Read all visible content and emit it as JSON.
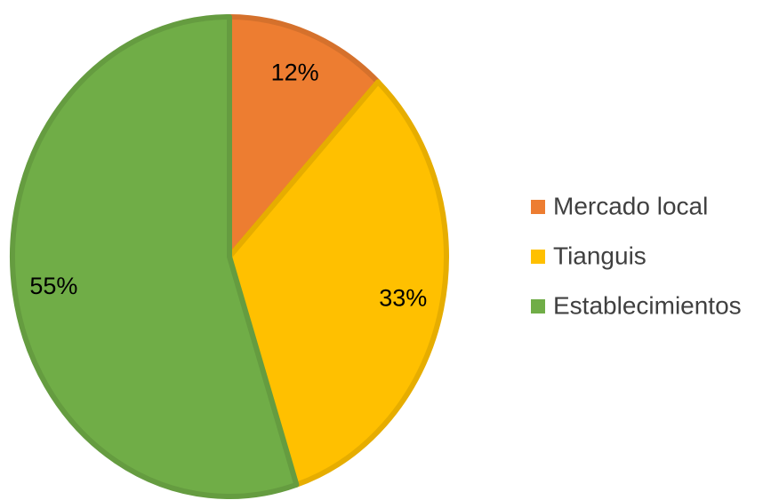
{
  "chart_data": {
    "type": "pie",
    "categories": [
      "Mercado local",
      "Tianguis",
      "Establecimientos"
    ],
    "values": [
      12,
      33,
      55
    ],
    "value_labels": [
      "12%",
      "33%",
      "55%"
    ],
    "colors": [
      "#ED7D31",
      "#FFC000",
      "#70AD47"
    ],
    "legend": "right"
  }
}
